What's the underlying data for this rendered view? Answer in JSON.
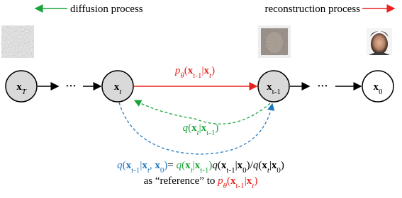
{
  "legend": {
    "diffusion": "diffusion process",
    "reconstruction": "reconstruction process"
  },
  "nodes": [
    {
      "label": [
        "x",
        "T"
      ]
    },
    {
      "label": [
        "x",
        "t"
      ]
    },
    {
      "label": [
        "x",
        "t-1"
      ]
    },
    {
      "label": [
        "x",
        "0"
      ]
    }
  ],
  "ellipsis": [
    "···",
    "···"
  ],
  "reverse_label": [
    "p",
    "θ",
    "(",
    "x",
    "t-1",
    "|",
    "x",
    "t",
    ")"
  ],
  "forward_label": [
    "q",
    "(",
    "x",
    "t",
    "|",
    "x",
    "t-1",
    ")"
  ],
  "posterior": [
    "q",
    "(",
    "x",
    "t-1",
    "|",
    "x",
    "t",
    ", ",
    "x",
    "0",
    ")",
    "= ",
    "q",
    "(",
    "x",
    "t",
    "|",
    "x",
    "t-1",
    ")",
    "q",
    "(",
    "x",
    "t-1",
    "|",
    "x",
    "0",
    ")",
    "/",
    "q",
    "(",
    "x",
    "t",
    "|",
    "x",
    "0",
    ")"
  ],
  "reference": [
    "as “reference” to ",
    "p",
    "θ",
    "(",
    "x",
    "t-1",
    "|",
    "x",
    "t",
    ")"
  ]
}
